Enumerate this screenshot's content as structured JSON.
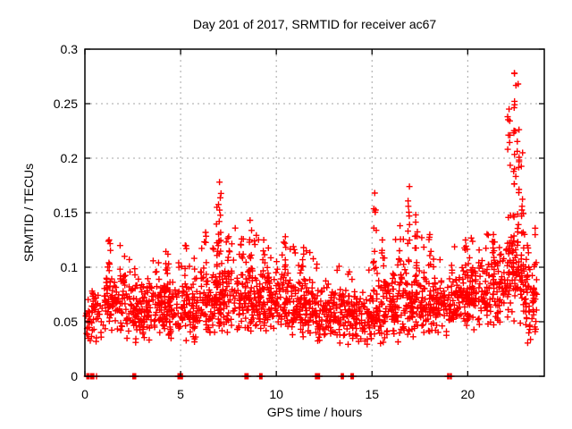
{
  "page": {
    "background": "#ffffff"
  },
  "chart_data": {
    "type": "scatter",
    "title": "Day 201 of 2017, SRMTID for receiver ac67",
    "xlabel": "GPS time / hours",
    "ylabel": "SRMTID / TECUs",
    "xlim": [
      0,
      24
    ],
    "ylim": [
      0,
      0.3
    ],
    "xticks": [
      {
        "v": 0,
        "label": "0"
      },
      {
        "v": 5,
        "label": "5"
      },
      {
        "v": 10,
        "label": "10"
      },
      {
        "v": 15,
        "label": "15"
      },
      {
        "v": 20,
        "label": "20"
      }
    ],
    "yticks": [
      {
        "v": 0,
        "label": "0"
      },
      {
        "v": 0.05,
        "label": "0.05"
      },
      {
        "v": 0.1,
        "label": "0.1"
      },
      {
        "v": 0.15,
        "label": "0.15"
      },
      {
        "v": 0.2,
        "label": "0.2"
      },
      {
        "v": 0.25,
        "label": "0.25"
      },
      {
        "v": 0.3,
        "label": "0.3"
      }
    ],
    "grid": true,
    "legend": false,
    "marker": {
      "shape": "plus",
      "size": 7,
      "color": "#ff0000"
    },
    "border_color": "#000000",
    "grid_color": "#a6a6a6",
    "seed": 1337,
    "hourly_profile": [
      {
        "x0": 0.03,
        "width": 0.97,
        "count": 55,
        "mean": 0.055,
        "spread": 0.015,
        "tail": 0.035
      },
      {
        "x0": 1.0,
        "width": 1.0,
        "count": 85,
        "mean": 0.068,
        "spread": 0.016,
        "tail": 0.045
      },
      {
        "x0": 2.0,
        "width": 1.0,
        "count": 80,
        "mean": 0.058,
        "spread": 0.015,
        "tail": 0.035
      },
      {
        "x0": 3.0,
        "width": 1.0,
        "count": 85,
        "mean": 0.06,
        "spread": 0.015,
        "tail": 0.038
      },
      {
        "x0": 4.0,
        "width": 1.0,
        "count": 85,
        "mean": 0.063,
        "spread": 0.015,
        "tail": 0.04
      },
      {
        "x0": 5.0,
        "width": 1.0,
        "count": 85,
        "mean": 0.06,
        "spread": 0.015,
        "tail": 0.04
      },
      {
        "x0": 6.0,
        "width": 1.0,
        "count": 90,
        "mean": 0.068,
        "spread": 0.017,
        "tail": 0.045
      },
      {
        "x0": 7.0,
        "width": 1.0,
        "count": 90,
        "mean": 0.073,
        "spread": 0.018,
        "tail": 0.045
      },
      {
        "x0": 8.0,
        "width": 1.0,
        "count": 90,
        "mean": 0.07,
        "spread": 0.018,
        "tail": 0.045
      },
      {
        "x0": 9.0,
        "width": 1.0,
        "count": 90,
        "mean": 0.07,
        "spread": 0.016,
        "tail": 0.042
      },
      {
        "x0": 10.0,
        "width": 1.0,
        "count": 88,
        "mean": 0.069,
        "spread": 0.016,
        "tail": 0.042
      },
      {
        "x0": 11.0,
        "width": 1.0,
        "count": 85,
        "mean": 0.065,
        "spread": 0.016,
        "tail": 0.04
      },
      {
        "x0": 12.0,
        "width": 1.0,
        "count": 85,
        "mean": 0.06,
        "spread": 0.015,
        "tail": 0.035
      },
      {
        "x0": 13.0,
        "width": 1.0,
        "count": 82,
        "mean": 0.056,
        "spread": 0.015,
        "tail": 0.035
      },
      {
        "x0": 14.0,
        "width": 1.0,
        "count": 80,
        "mean": 0.055,
        "spread": 0.014,
        "tail": 0.035
      },
      {
        "x0": 15.0,
        "width": 1.0,
        "count": 85,
        "mean": 0.06,
        "spread": 0.016,
        "tail": 0.042
      },
      {
        "x0": 16.0,
        "width": 1.0,
        "count": 88,
        "mean": 0.065,
        "spread": 0.017,
        "tail": 0.045
      },
      {
        "x0": 17.0,
        "width": 1.0,
        "count": 88,
        "mean": 0.07,
        "spread": 0.017,
        "tail": 0.042
      },
      {
        "x0": 18.0,
        "width": 1.0,
        "count": 85,
        "mean": 0.065,
        "spread": 0.016,
        "tail": 0.04
      },
      {
        "x0": 19.0,
        "width": 1.0,
        "count": 88,
        "mean": 0.07,
        "spread": 0.016,
        "tail": 0.042
      },
      {
        "x0": 20.0,
        "width": 1.0,
        "count": 88,
        "mean": 0.074,
        "spread": 0.017,
        "tail": 0.042
      },
      {
        "x0": 21.0,
        "width": 1.0,
        "count": 88,
        "mean": 0.078,
        "spread": 0.018,
        "tail": 0.045
      },
      {
        "x0": 22.0,
        "width": 1.0,
        "count": 90,
        "mean": 0.09,
        "spread": 0.024,
        "tail": 0.05
      },
      {
        "x0": 23.0,
        "width": 0.62,
        "count": 60,
        "mean": 0.072,
        "spread": 0.022,
        "tail": 0.045
      }
    ],
    "spikes": [
      {
        "x": 1.25,
        "base": 0.09,
        "top": 0.125,
        "count": 6
      },
      {
        "x": 2.05,
        "base": 0.08,
        "top": 0.11,
        "count": 5
      },
      {
        "x": 4.35,
        "base": 0.08,
        "top": 0.112,
        "count": 5
      },
      {
        "x": 5.25,
        "base": 0.08,
        "top": 0.12,
        "count": 6
      },
      {
        "x": 6.3,
        "base": 0.09,
        "top": 0.132,
        "count": 6
      },
      {
        "x": 6.9,
        "base": 0.09,
        "top": 0.155,
        "count": 7
      },
      {
        "x": 7.05,
        "base": 0.1,
        "top": 0.178,
        "count": 12
      },
      {
        "x": 7.5,
        "base": 0.09,
        "top": 0.128,
        "count": 6
      },
      {
        "x": 8.2,
        "base": 0.09,
        "top": 0.126,
        "count": 6
      },
      {
        "x": 8.65,
        "base": 0.09,
        "top": 0.143,
        "count": 8
      },
      {
        "x": 9.35,
        "base": 0.09,
        "top": 0.125,
        "count": 6
      },
      {
        "x": 10.45,
        "base": 0.09,
        "top": 0.128,
        "count": 6
      },
      {
        "x": 11.4,
        "base": 0.085,
        "top": 0.118,
        "count": 5
      },
      {
        "x": 15.15,
        "base": 0.09,
        "top": 0.168,
        "count": 9
      },
      {
        "x": 15.55,
        "base": 0.085,
        "top": 0.125,
        "count": 5
      },
      {
        "x": 16.45,
        "base": 0.09,
        "top": 0.138,
        "count": 6
      },
      {
        "x": 16.95,
        "base": 0.1,
        "top": 0.174,
        "count": 9
      },
      {
        "x": 17.3,
        "base": 0.09,
        "top": 0.148,
        "count": 7
      },
      {
        "x": 18.0,
        "base": 0.085,
        "top": 0.13,
        "count": 5
      },
      {
        "x": 19.9,
        "base": 0.09,
        "top": 0.125,
        "count": 6
      },
      {
        "x": 21.35,
        "base": 0.09,
        "top": 0.13,
        "count": 6
      },
      {
        "x": 22.15,
        "base": 0.1,
        "top": 0.245,
        "count": 13
      },
      {
        "x": 22.45,
        "base": 0.12,
        "top": 0.278,
        "count": 16
      },
      {
        "x": 22.65,
        "base": 0.1,
        "top": 0.268,
        "count": 13
      },
      {
        "x": 22.85,
        "base": 0.09,
        "top": 0.205,
        "count": 11
      },
      {
        "x": 23.1,
        "base": 0.08,
        "top": 0.12,
        "count": 5
      }
    ],
    "zero_clusters": [
      {
        "x": 0.35,
        "width": 0.6,
        "count": 22
      },
      {
        "x": 2.6,
        "width": 0.2,
        "count": 9
      },
      {
        "x": 5.0,
        "width": 0.28,
        "count": 11
      },
      {
        "x": 8.45,
        "width": 0.2,
        "count": 9
      },
      {
        "x": 9.2,
        "width": 0.16,
        "count": 8
      },
      {
        "x": 12.15,
        "width": 0.22,
        "count": 9
      },
      {
        "x": 13.45,
        "width": 0.16,
        "count": 8
      },
      {
        "x": 13.95,
        "width": 0.16,
        "count": 8
      },
      {
        "x": 19.05,
        "width": 0.2,
        "count": 9
      }
    ]
  }
}
